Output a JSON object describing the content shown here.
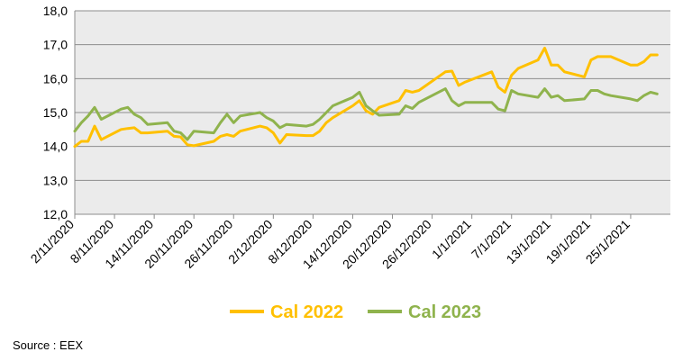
{
  "chart_data": {
    "type": "line",
    "title": "",
    "xlabel": "",
    "ylabel": "",
    "ylim": [
      12.0,
      18.0
    ],
    "yticks": [
      "12,0",
      "13,0",
      "14,0",
      "15,0",
      "16,0",
      "17,0",
      "18,0"
    ],
    "xlim": [
      "2020-11-02",
      "2021-01-31"
    ],
    "xtick_labels": [
      "2/11/2020",
      "8/11/2020",
      "14/11/2020",
      "20/11/2020",
      "26/11/2020",
      "2/12/2020",
      "8/12/2020",
      "14/12/2020",
      "20/12/2020",
      "26/12/2020",
      "1/1/2021",
      "7/1/2021",
      "13/1/2021",
      "19/1/2021",
      "25/1/2021"
    ],
    "xtick_dates": [
      "2020-11-02",
      "2020-11-08",
      "2020-11-14",
      "2020-11-20",
      "2020-11-26",
      "2020-12-02",
      "2020-12-08",
      "2020-12-14",
      "2020-12-20",
      "2020-12-26",
      "2021-01-01",
      "2021-01-07",
      "2021-01-13",
      "2021-01-19",
      "2021-01-25"
    ],
    "grid": true,
    "legend_position": "bottom",
    "background_color": "#ebebeb",
    "series": [
      {
        "name": "Cal 2022",
        "color": "#ffc000",
        "x": [
          "2020-11-02",
          "2020-11-03",
          "2020-11-04",
          "2020-11-05",
          "2020-11-06",
          "2020-11-09",
          "2020-11-10",
          "2020-11-11",
          "2020-11-12",
          "2020-11-13",
          "2020-11-16",
          "2020-11-17",
          "2020-11-18",
          "2020-11-19",
          "2020-11-20",
          "2020-11-23",
          "2020-11-24",
          "2020-11-25",
          "2020-11-26",
          "2020-11-27",
          "2020-11-30",
          "2020-12-01",
          "2020-12-02",
          "2020-12-03",
          "2020-12-04",
          "2020-12-07",
          "2020-12-08",
          "2020-12-09",
          "2020-12-10",
          "2020-12-11",
          "2020-12-14",
          "2020-12-15",
          "2020-12-16",
          "2020-12-17",
          "2020-12-18",
          "2020-12-21",
          "2020-12-22",
          "2020-12-23",
          "2020-12-24",
          "2020-12-28",
          "2020-12-29",
          "2020-12-30",
          "2020-12-31",
          "2021-01-04",
          "2021-01-05",
          "2021-01-06",
          "2021-01-07",
          "2021-01-08",
          "2021-01-11",
          "2021-01-12",
          "2021-01-13",
          "2021-01-14",
          "2021-01-15",
          "2021-01-18",
          "2021-01-19",
          "2021-01-20",
          "2021-01-21",
          "2021-01-22",
          "2021-01-25",
          "2021-01-26",
          "2021-01-27",
          "2021-01-28",
          "2021-01-29"
        ],
        "values": [
          14.0,
          14.15,
          14.15,
          14.6,
          14.2,
          14.5,
          14.53,
          14.55,
          14.4,
          14.4,
          14.45,
          14.3,
          14.28,
          14.05,
          14.02,
          14.15,
          14.3,
          14.35,
          14.3,
          14.45,
          14.6,
          14.55,
          14.4,
          14.1,
          14.35,
          14.32,
          14.32,
          14.45,
          14.7,
          14.85,
          15.2,
          15.35,
          15.05,
          14.95,
          15.15,
          15.35,
          15.65,
          15.6,
          15.65,
          16.2,
          16.22,
          15.8,
          15.9,
          16.2,
          15.75,
          15.6,
          16.1,
          16.3,
          16.55,
          16.9,
          16.4,
          16.4,
          16.2,
          16.05,
          16.55,
          16.65,
          16.65,
          16.65,
          16.4,
          16.4,
          16.5,
          16.7,
          16.7
        ]
      },
      {
        "name": "Cal 2023",
        "color": "#8fb34d",
        "x": [
          "2020-11-02",
          "2020-11-03",
          "2020-11-04",
          "2020-11-05",
          "2020-11-06",
          "2020-11-09",
          "2020-11-10",
          "2020-11-11",
          "2020-11-12",
          "2020-11-13",
          "2020-11-16",
          "2020-11-17",
          "2020-11-18",
          "2020-11-19",
          "2020-11-20",
          "2020-11-23",
          "2020-11-24",
          "2020-11-25",
          "2020-11-26",
          "2020-11-27",
          "2020-11-30",
          "2020-12-01",
          "2020-12-02",
          "2020-12-03",
          "2020-12-04",
          "2020-12-07",
          "2020-12-08",
          "2020-12-09",
          "2020-12-10",
          "2020-12-11",
          "2020-12-14",
          "2020-12-15",
          "2020-12-16",
          "2020-12-17",
          "2020-12-18",
          "2020-12-21",
          "2020-12-22",
          "2020-12-23",
          "2020-12-24",
          "2020-12-28",
          "2020-12-29",
          "2020-12-30",
          "2020-12-31",
          "2021-01-04",
          "2021-01-05",
          "2021-01-06",
          "2021-01-07",
          "2021-01-08",
          "2021-01-11",
          "2021-01-12",
          "2021-01-13",
          "2021-01-14",
          "2021-01-15",
          "2021-01-18",
          "2021-01-19",
          "2021-01-20",
          "2021-01-21",
          "2021-01-22",
          "2021-01-25",
          "2021-01-26",
          "2021-01-27",
          "2021-01-28",
          "2021-01-29"
        ],
        "values": [
          14.45,
          14.7,
          14.9,
          15.15,
          14.8,
          15.1,
          15.15,
          14.95,
          14.85,
          14.65,
          14.7,
          14.45,
          14.4,
          14.2,
          14.45,
          14.4,
          14.7,
          14.95,
          14.7,
          14.9,
          15.0,
          14.85,
          14.75,
          14.55,
          14.65,
          14.6,
          14.65,
          14.8,
          15.0,
          15.2,
          15.45,
          15.6,
          15.2,
          15.05,
          14.92,
          14.95,
          15.2,
          15.12,
          15.3,
          15.7,
          15.35,
          15.2,
          15.3,
          15.3,
          15.1,
          15.05,
          15.65,
          15.55,
          15.45,
          15.7,
          15.45,
          15.5,
          15.35,
          15.4,
          15.65,
          15.65,
          15.55,
          15.5,
          15.4,
          15.35,
          15.5,
          15.6,
          15.55
        ]
      }
    ]
  },
  "source_text": "Source : EEX"
}
